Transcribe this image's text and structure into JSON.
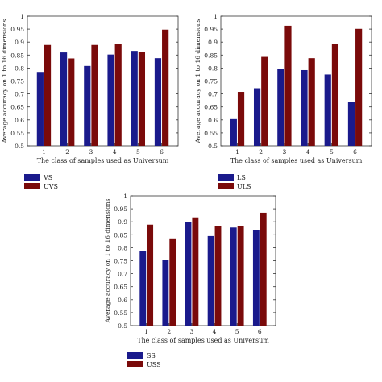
{
  "colors": {
    "series_a": "#1a1a8c",
    "series_b": "#7a0a0a",
    "axis": "#333333"
  },
  "chart_data": [
    {
      "type": "bar",
      "title": "",
      "xlabel": "The class of samples used as Universum",
      "ylabel": "Average accuracy on 1 to 16 dimensions",
      "categories": [
        "1",
        "2",
        "3",
        "4",
        "5",
        "6"
      ],
      "ylim": [
        0.5,
        1.0
      ],
      "yticks": [
        "0.5",
        "0.55",
        "0.6",
        "0.65",
        "0.7",
        "0.75",
        "0.8",
        "0.85",
        "0.9",
        "0.95",
        "1"
      ],
      "legend_placement": "below-left",
      "series": [
        {
          "name": "VS",
          "color": "#1a1a8c",
          "values": [
            0.785,
            0.86,
            0.808,
            0.852,
            0.866,
            0.838
          ]
        },
        {
          "name": "UVS",
          "color": "#7a0a0a",
          "values": [
            0.889,
            0.837,
            0.889,
            0.893,
            0.862,
            0.948
          ]
        }
      ]
    },
    {
      "type": "bar",
      "title": "",
      "xlabel": "The class of samples used as Universum",
      "ylabel": "Average accuracy on 1 to 16 dimensions",
      "categories": [
        "1",
        "2",
        "3",
        "4",
        "5",
        "6"
      ],
      "ylim": [
        0.5,
        1.0
      ],
      "yticks": [
        "0.5",
        "0.55",
        "0.6",
        "0.65",
        "0.7",
        "0.75",
        "0.8",
        "0.85",
        "0.9",
        "0.95",
        "1"
      ],
      "legend_placement": "below-left",
      "series": [
        {
          "name": "LS",
          "color": "#1a1a8c",
          "values": [
            0.603,
            0.722,
            0.797,
            0.792,
            0.775,
            0.668
          ]
        },
        {
          "name": "ULS",
          "color": "#7a0a0a",
          "values": [
            0.708,
            0.843,
            0.963,
            0.838,
            0.893,
            0.951
          ]
        }
      ]
    },
    {
      "type": "bar",
      "title": "",
      "xlabel": "The class of samples used as Universum",
      "ylabel": "Average accuracy on 1 to 16 dimensions",
      "categories": [
        "1",
        "2",
        "3",
        "4",
        "5",
        "6"
      ],
      "ylim": [
        0.5,
        1.0
      ],
      "yticks": [
        "0.5",
        "0.55",
        "0.6",
        "0.65",
        "0.7",
        "0.75",
        "0.8",
        "0.85",
        "0.9",
        "0.95",
        "1"
      ],
      "legend_placement": "below-left",
      "series": [
        {
          "name": "SS",
          "color": "#1a1a8c",
          "values": [
            0.787,
            0.753,
            0.898,
            0.845,
            0.878,
            0.869
          ]
        },
        {
          "name": "USS",
          "color": "#7a0a0a",
          "values": [
            0.889,
            0.836,
            0.917,
            0.882,
            0.884,
            0.935
          ]
        }
      ]
    }
  ]
}
